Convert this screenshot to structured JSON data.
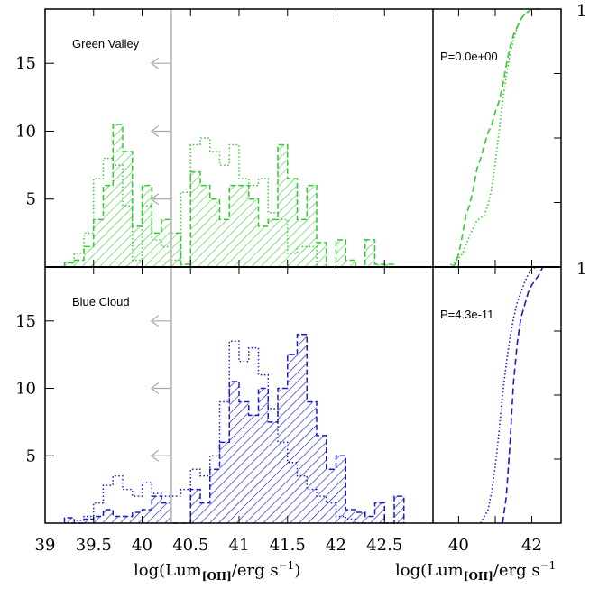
{
  "chart_data": [
    {
      "type": "histogram",
      "panel": "top-left",
      "label": "Green Valley",
      "xlim": [
        39,
        43
      ],
      "ylim": [
        0,
        19
      ],
      "yticks": [
        5,
        10,
        15
      ],
      "bin_edges": [
        39.2,
        39.3,
        39.4,
        39.5,
        39.6,
        39.7,
        39.8,
        39.9,
        40.0,
        40.1,
        40.2,
        40.3,
        40.4,
        40.5,
        40.6,
        40.7,
        40.8,
        40.9,
        41.0,
        41.1,
        41.2,
        41.3,
        41.4,
        41.5,
        41.6,
        41.7,
        41.8,
        41.9,
        42.0,
        42.1,
        42.2,
        42.3,
        42.4,
        42.5,
        42.6,
        42.7
      ],
      "series": [
        {
          "style": "hatched-dashed",
          "color": "#2ecc2e",
          "values": [
            0.3,
            0.5,
            1.5,
            3.5,
            6.0,
            10.5,
            8.5,
            3.0,
            6.0,
            2.5,
            3.5,
            2.5,
            0.2,
            7.0,
            6.0,
            5.0,
            3.5,
            6.0,
            6.0,
            5.0,
            3.0,
            3.5,
            9.0,
            6.5,
            3.5,
            6.0,
            1.8,
            0.0,
            2.0,
            0.5,
            0.0,
            2.0,
            0.2,
            0.2,
            0.0
          ]
        },
        {
          "style": "dotted",
          "color": "#2ecc2e",
          "values": [
            0.3,
            1.0,
            2.5,
            6.5,
            8.0,
            7.5,
            4.5,
            0.5,
            4.5,
            2.0,
            1.5,
            0.5,
            5.5,
            9.0,
            9.5,
            8.5,
            7.5,
            9.0,
            6.5,
            6.0,
            6.5,
            4.0,
            3.5,
            1.0,
            1.5,
            1.5,
            0.0,
            0.0,
            0.0,
            0.0,
            0.0,
            0.0,
            0.0,
            0.0,
            0.0
          ]
        }
      ],
      "arrows_y": [
        15,
        10,
        5
      ],
      "vline_x": 40.3
    },
    {
      "type": "histogram",
      "panel": "bottom-left",
      "label": "Blue Cloud",
      "xlim": [
        39,
        43
      ],
      "ylim": [
        0,
        19
      ],
      "yticks": [
        5,
        10,
        15
      ],
      "xticks": [
        "39",
        "39.5",
        "40",
        "40.5",
        "41",
        "41.5",
        "42",
        "42.5"
      ],
      "xticks_v": [
        39,
        39.5,
        40,
        40.5,
        41,
        41.5,
        42,
        42.5
      ],
      "xlabel_main": "log(Lum",
      "xlabel_sub": "[OII]",
      "xlabel_tail": "/erg s",
      "xlabel_sup": "−1",
      "xlabel_close": ")",
      "bin_edges": [
        39.2,
        39.3,
        39.4,
        39.5,
        39.6,
        39.7,
        39.8,
        39.9,
        40.0,
        40.1,
        40.2,
        40.3,
        40.4,
        40.5,
        40.6,
        40.7,
        40.8,
        40.9,
        41.0,
        41.1,
        41.2,
        41.3,
        41.4,
        41.5,
        41.6,
        41.7,
        41.8,
        41.9,
        42.0,
        42.1,
        42.2,
        42.3,
        42.4,
        42.5,
        42.6,
        42.7
      ],
      "series": [
        {
          "style": "hatched-dashed",
          "color": "#1a1acc",
          "values": [
            0.4,
            0.0,
            0.3,
            0.5,
            1.0,
            0.5,
            0.5,
            0.8,
            1.0,
            2.0,
            1.5,
            0.0,
            0.0,
            2.5,
            1.5,
            4.0,
            6.0,
            10.5,
            9.0,
            8.0,
            10.0,
            7.5,
            10.0,
            12.5,
            14.0,
            9.0,
            6.5,
            4.0,
            5.0,
            1.0,
            0.8,
            0.5,
            1.5,
            0.0,
            2.0
          ]
        },
        {
          "style": "dotted",
          "color": "#1a1acc",
          "values": [
            0.0,
            0.2,
            0.5,
            1.5,
            2.8,
            3.5,
            2.5,
            2.0,
            3.0,
            2.2,
            2.0,
            2.0,
            2.5,
            4.0,
            3.5,
            5.0,
            9.0,
            13.5,
            12.0,
            13.0,
            11.0,
            8.5,
            6.0,
            4.5,
            3.5,
            2.5,
            2.0,
            1.5,
            0.5,
            0.3,
            0.0,
            0.0,
            0.0,
            0.0,
            0.0
          ]
        }
      ],
      "arrows_y": [
        15,
        10,
        5
      ],
      "vline_x": 40.3
    },
    {
      "type": "line",
      "panel": "top-right",
      "annotation": "P=0.0e+00",
      "xlim": [
        39.3,
        42.8
      ],
      "ylim": [
        0,
        1
      ],
      "right_label": "1",
      "series": [
        {
          "style": "dashed",
          "color": "#2ecc2e",
          "x": [
            39.8,
            39.9,
            40.0,
            40.1,
            40.2,
            40.3,
            40.4,
            40.5,
            40.6,
            40.7,
            40.8,
            40.9,
            41.0,
            41.1,
            41.2,
            41.3,
            41.4,
            41.5,
            41.6,
            41.7,
            41.8,
            41.9,
            42.0,
            42.1,
            42.2,
            42.4
          ],
          "y": [
            0.0,
            0.01,
            0.05,
            0.12,
            0.2,
            0.24,
            0.3,
            0.38,
            0.42,
            0.47,
            0.52,
            0.55,
            0.6,
            0.64,
            0.7,
            0.78,
            0.85,
            0.9,
            0.93,
            0.96,
            0.98,
            0.99,
            1.0,
            1.0,
            1.0,
            1.0
          ]
        },
        {
          "style": "dotted",
          "color": "#2ecc2e",
          "x": [
            39.7,
            39.9,
            40.1,
            40.3,
            40.5,
            40.7,
            40.8,
            40.9,
            41.0,
            41.1,
            41.2,
            41.3,
            41.4,
            41.5,
            41.6,
            41.7,
            41.8,
            41.9,
            42.0,
            42.2
          ],
          "y": [
            0.0,
            0.02,
            0.05,
            0.12,
            0.18,
            0.2,
            0.24,
            0.3,
            0.4,
            0.52,
            0.64,
            0.74,
            0.82,
            0.88,
            0.93,
            0.96,
            0.98,
            0.99,
            1.0,
            1.0
          ]
        }
      ]
    },
    {
      "type": "line",
      "panel": "bottom-right",
      "annotation": "P=4.3e-11",
      "xlim": [
        39.3,
        42.8
      ],
      "ylim": [
        0,
        1
      ],
      "right_label": "1",
      "xticks": [
        "40",
        "42"
      ],
      "xticks_v": [
        40,
        42
      ],
      "xlabel_main": "log(Lum",
      "xlabel_sub": "[OII]",
      "xlabel_tail": "/erg s",
      "xlabel_sup": "−1",
      "series": [
        {
          "style": "dashed",
          "color": "#1a1acc",
          "x": [
            41.2,
            41.3,
            41.4,
            41.5,
            41.6,
            41.7,
            41.8,
            41.9,
            42.0,
            42.1,
            42.2,
            42.3
          ],
          "y": [
            0.0,
            0.1,
            0.3,
            0.55,
            0.7,
            0.8,
            0.85,
            0.9,
            0.93,
            0.95,
            0.97,
            1.0
          ]
        },
        {
          "style": "dotted",
          "color": "#1a1acc",
          "x": [
            40.6,
            40.8,
            40.9,
            41.0,
            41.1,
            41.2,
            41.3,
            41.4,
            41.5,
            41.6,
            41.7,
            41.8,
            41.9,
            42.0,
            42.1
          ],
          "y": [
            0.0,
            0.05,
            0.12,
            0.22,
            0.35,
            0.5,
            0.62,
            0.72,
            0.8,
            0.86,
            0.9,
            0.94,
            0.97,
            0.99,
            1.0
          ]
        }
      ]
    }
  ]
}
